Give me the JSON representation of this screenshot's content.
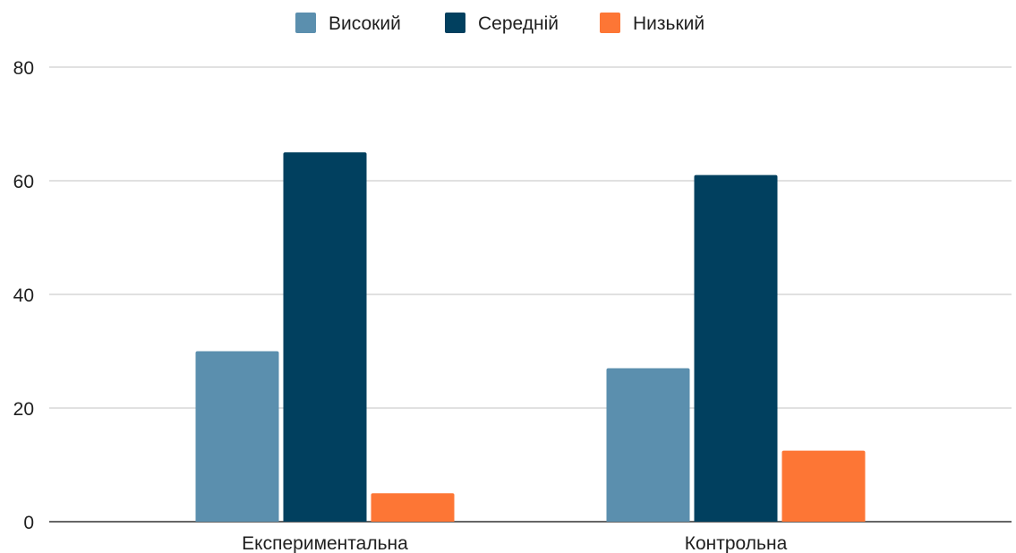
{
  "chart_data": {
    "type": "bar",
    "title": "",
    "xlabel": "",
    "ylabel": "",
    "categories": [
      "Експериментальна",
      "Контрольна"
    ],
    "series": [
      {
        "name": "Високий",
        "color": "#5b8fae",
        "values": [
          30,
          27
        ]
      },
      {
        "name": "Середній",
        "color": "#01405f",
        "values": [
          65,
          61
        ]
      },
      {
        "name": "Низький",
        "color": "#fd7635",
        "values": [
          5,
          12.5
        ]
      }
    ],
    "ylim": [
      0,
      80
    ],
    "yticks": [
      "0",
      "20",
      "40",
      "60",
      "80"
    ],
    "grid": true,
    "legend_position": "top-center"
  }
}
